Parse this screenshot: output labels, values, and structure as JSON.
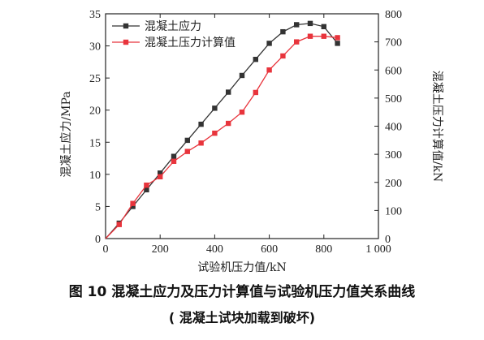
{
  "caption": {
    "line1": "图 10    混凝土应力及压力计算值与试验机压力值关系曲线",
    "line2": "( 混凝土试块加载到破坏)"
  },
  "chart_data": {
    "type": "line",
    "xlabel": "试验机压力值/kN",
    "ylabel_left": "混凝土应力/MPa",
    "ylabel_right": "混凝土压力计算值/kN",
    "xlim": [
      0,
      1000
    ],
    "ylim_left": [
      0,
      35
    ],
    "ylim_right": [
      0,
      800
    ],
    "xticks": [
      0,
      200,
      400,
      600,
      800,
      1000
    ],
    "yticks_left": [
      0,
      5,
      10,
      15,
      20,
      25,
      30,
      35
    ],
    "yticks_right": [
      0,
      100,
      200,
      300,
      400,
      500,
      600,
      700,
      800
    ],
    "xtick_labels": [
      "0",
      "200",
      "400",
      "600",
      "800",
      "1 000"
    ],
    "grid": false,
    "legend_position": "top-left",
    "series": [
      {
        "name": "混凝土应力",
        "axis": "left",
        "color": "#333333",
        "marker": "square",
        "x": [
          50,
          100,
          150,
          200,
          250,
          300,
          350,
          400,
          450,
          500,
          550,
          600,
          650,
          700,
          750,
          800,
          850
        ],
        "y": [
          2.4,
          5.0,
          7.6,
          10.2,
          12.8,
          15.3,
          17.8,
          20.3,
          22.8,
          25.4,
          27.9,
          30.4,
          32.2,
          33.3,
          33.5,
          33.0,
          30.4
        ]
      },
      {
        "name": "混凝土压力计算值",
        "axis": "right",
        "color": "#e8343c",
        "marker": "square",
        "x": [
          50,
          100,
          150,
          200,
          250,
          300,
          350,
          400,
          450,
          500,
          550,
          600,
          650,
          700,
          750,
          800,
          850
        ],
        "y": [
          50,
          125,
          190,
          220,
          275,
          310,
          340,
          375,
          410,
          450,
          520,
          600,
          650,
          700,
          720,
          720,
          715
        ]
      }
    ]
  }
}
